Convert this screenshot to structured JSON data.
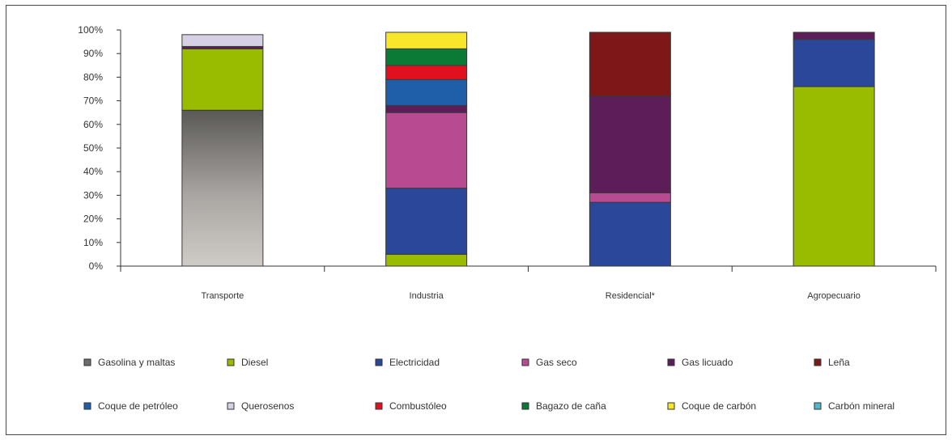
{
  "chart_data": {
    "type": "bar",
    "stacked": true,
    "title": "",
    "xlabel": "",
    "ylabel": "",
    "ylim": [
      0,
      100
    ],
    "yticks": [
      "0%",
      "10%",
      "20%",
      "30%",
      "40%",
      "50%",
      "60%",
      "70%",
      "80%",
      "90%",
      "100%"
    ],
    "categories": [
      "Transporte",
      "Industria",
      "Residencial*",
      "Agropecuario"
    ],
    "grid": false,
    "legend_position": "bottom",
    "series": [
      {
        "name": "Gasolina y maltas",
        "color": "#9a9794",
        "values": [
          66,
          0,
          0,
          0
        ]
      },
      {
        "name": "Diesel",
        "color": "#99bb00",
        "values": [
          26,
          5,
          0,
          76
        ]
      },
      {
        "name": "Electricidad",
        "color": "#2b4799",
        "values": [
          0,
          28,
          27,
          20
        ]
      },
      {
        "name": "Gas seco",
        "color": "#b84a92",
        "values": [
          0,
          32,
          4,
          0
        ]
      },
      {
        "name": "Gas licuado",
        "color": "#5c1d58",
        "values": [
          1,
          3,
          41,
          3
        ]
      },
      {
        "name": "Leña",
        "color": "#7e1717",
        "values": [
          0,
          0,
          27,
          0
        ]
      },
      {
        "name": "Coque de petróleo",
        "color": "#1f5ea8",
        "values": [
          0,
          11,
          0,
          0
        ]
      },
      {
        "name": "Querosenos",
        "color": "#d6d0e4",
        "values": [
          5,
          0,
          0,
          0
        ]
      },
      {
        "name": "Combustóleo",
        "color": "#e0101f",
        "values": [
          0,
          6,
          0,
          0
        ]
      },
      {
        "name": "Bagazo de caña",
        "color": "#0a7a36",
        "values": [
          0,
          7,
          0,
          0
        ]
      },
      {
        "name": "Coque de carbón",
        "color": "#f7e62a",
        "values": [
          0,
          7,
          0,
          0
        ]
      },
      {
        "name": "Carbón mineral",
        "color": "#4fb8c9",
        "values": [
          0,
          0,
          0,
          0
        ]
      }
    ]
  }
}
